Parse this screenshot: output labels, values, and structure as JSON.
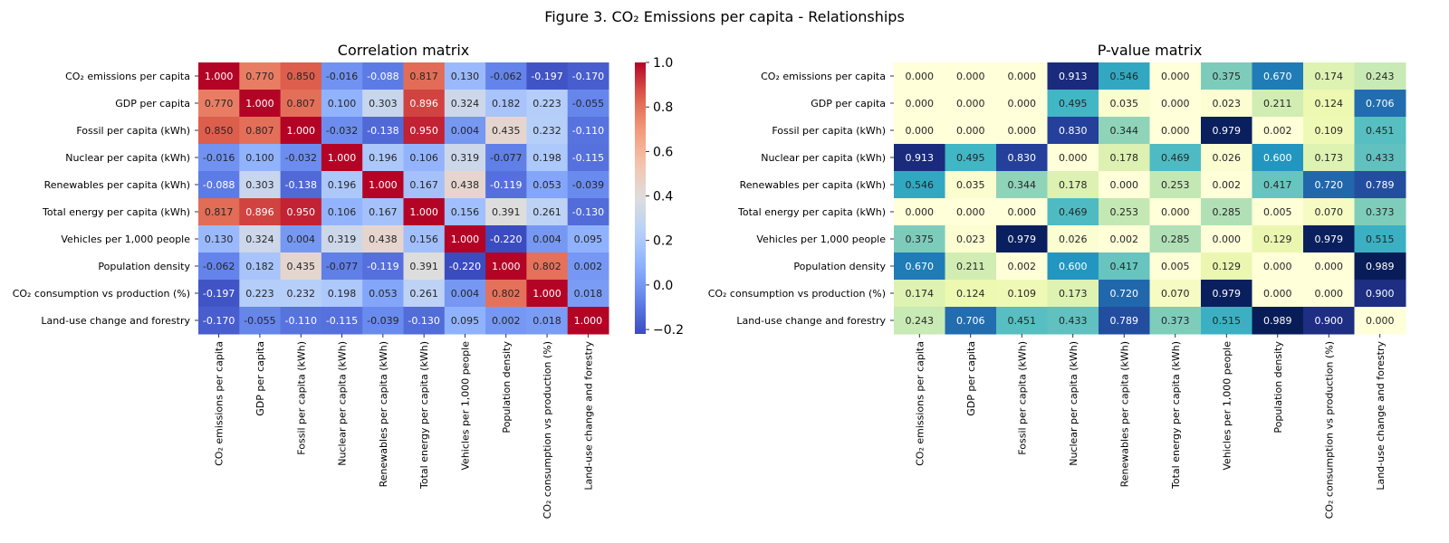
{
  "figure_title": "Figure 3. CO₂ Emissions per capita - Relationships",
  "chart_data": [
    {
      "type": "heatmap",
      "title": "Correlation matrix",
      "colormap": "coolwarm",
      "vmin": -0.22,
      "vmax": 1.0,
      "grid": false,
      "legend": "colorbar-right",
      "colorbar_ticks": [
        "1.0",
        "0.8",
        "0.6",
        "0.4",
        "0.2",
        "0.0",
        "−0.2"
      ],
      "colorbar_tick_values": [
        1.0,
        0.8,
        0.6,
        0.4,
        0.2,
        0.0,
        -0.2
      ],
      "rows": [
        "CO₂ emissions per capita",
        "GDP per capita",
        "Fossil per capita (kWh)",
        "Nuclear per capita (kWh)",
        "Renewables per capita (kWh)",
        "Total energy per capita (kWh)",
        "Vehicles per 1,000 people",
        "Population density",
        "CO₂ consumption vs production (%)",
        "Land-use change and forestry"
      ],
      "columns": [
        "CO₂ emissions per capita",
        "GDP per capita",
        "Fossil per capita (kWh)",
        "Nuclear per capita (kWh)",
        "Renewables per capita (kWh)",
        "Total energy per capita (kWh)",
        "Vehicles per 1,000 people",
        "Population density",
        "CO₂ consumption vs production (%)",
        "Land-use change and forestry"
      ],
      "values": [
        [
          1.0,
          0.77,
          0.85,
          -0.016,
          -0.088,
          0.817,
          0.13,
          -0.062,
          -0.197,
          -0.17
        ],
        [
          0.77,
          1.0,
          0.807,
          0.1,
          0.303,
          0.896,
          0.324,
          0.182,
          0.223,
          -0.055
        ],
        [
          0.85,
          0.807,
          1.0,
          -0.032,
          -0.138,
          0.95,
          0.004,
          0.435,
          0.232,
          -0.11
        ],
        [
          -0.016,
          0.1,
          -0.032,
          1.0,
          0.196,
          0.106,
          0.319,
          -0.077,
          0.198,
          -0.115
        ],
        [
          -0.088,
          0.303,
          -0.138,
          0.196,
          1.0,
          0.167,
          0.438,
          -0.119,
          0.053,
          -0.039
        ],
        [
          0.817,
          0.896,
          0.95,
          0.106,
          0.167,
          1.0,
          0.156,
          0.391,
          0.261,
          -0.13
        ],
        [
          0.13,
          0.324,
          0.004,
          0.319,
          0.438,
          0.156,
          1.0,
          -0.22,
          0.004,
          0.095
        ],
        [
          -0.062,
          0.182,
          0.435,
          -0.077,
          -0.119,
          0.391,
          -0.22,
          1.0,
          0.802,
          0.002
        ],
        [
          -0.197,
          0.223,
          0.232,
          0.198,
          0.053,
          0.261,
          0.004,
          0.802,
          1.0,
          0.018
        ],
        [
          -0.17,
          -0.055,
          -0.11,
          -0.115,
          -0.039,
          -0.13,
          0.095,
          0.002,
          0.018,
          1.0
        ]
      ]
    },
    {
      "type": "heatmap",
      "title": "P-value matrix",
      "colormap": "YlGnBu",
      "vmin": 0.0,
      "vmax": 0.989,
      "grid": false,
      "legend": "none",
      "rows": [
        "CO₂ emissions per capita",
        "GDP per capita",
        "Fossil per capita (kWh)",
        "Nuclear per capita (kWh)",
        "Renewables per capita (kWh)",
        "Total energy per capita (kWh)",
        "Vehicles per 1,000 people",
        "Population density",
        "CO₂ consumption vs production (%)",
        "Land-use change and forestry"
      ],
      "columns": [
        "CO₂ emissions per capita",
        "GDP per capita",
        "Fossil per capita (kWh)",
        "Nuclear per capita (kWh)",
        "Renewables per capita (kWh)",
        "Total energy per capita (kWh)",
        "Vehicles per 1,000 people",
        "Population density",
        "CO₂ consumption vs production (%)",
        "Land-use change and forestry"
      ],
      "values": [
        [
          0.0,
          0.0,
          0.0,
          0.913,
          0.546,
          0.0,
          0.375,
          0.67,
          0.174,
          0.243
        ],
        [
          0.0,
          0.0,
          0.0,
          0.495,
          0.035,
          0.0,
          0.023,
          0.211,
          0.124,
          0.706
        ],
        [
          0.0,
          0.0,
          0.0,
          0.83,
          0.344,
          0.0,
          0.979,
          0.002,
          0.109,
          0.451
        ],
        [
          0.913,
          0.495,
          0.83,
          0.0,
          0.178,
          0.469,
          0.026,
          0.6,
          0.173,
          0.433
        ],
        [
          0.546,
          0.035,
          0.344,
          0.178,
          0.0,
          0.253,
          0.002,
          0.417,
          0.72,
          0.789
        ],
        [
          0.0,
          0.0,
          0.0,
          0.469,
          0.253,
          0.0,
          0.285,
          0.005,
          0.07,
          0.373
        ],
        [
          0.375,
          0.023,
          0.979,
          0.026,
          0.002,
          0.285,
          0.0,
          0.129,
          0.979,
          0.515
        ],
        [
          0.67,
          0.211,
          0.002,
          0.6,
          0.417,
          0.005,
          0.129,
          0.0,
          0.0,
          0.989
        ],
        [
          0.174,
          0.124,
          0.109,
          0.173,
          0.72,
          0.07,
          0.979,
          0.0,
          0.0,
          0.9
        ],
        [
          0.243,
          0.706,
          0.451,
          0.433,
          0.789,
          0.373,
          0.515,
          0.989,
          0.9,
          0.0
        ]
      ]
    }
  ]
}
